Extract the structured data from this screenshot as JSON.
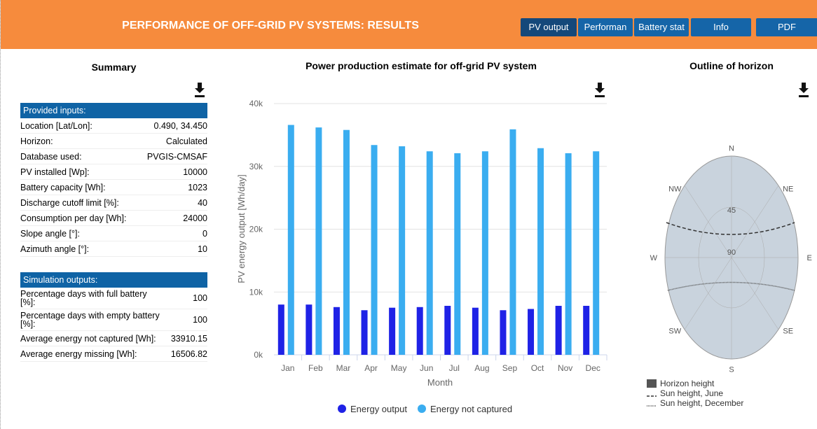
{
  "header": {
    "title": "PERFORMANCE OF OFF-GRID PV SYSTEMS: RESULTS",
    "buttons": [
      "PV output",
      "Performan",
      "Battery stat",
      "Info",
      "PDF"
    ]
  },
  "summary": {
    "title": "Summary",
    "inputs_title": "Provided inputs:",
    "inputs": [
      [
        "Location [Lat/Lon]:",
        "0.490, 34.450"
      ],
      [
        "Horizon:",
        "Calculated"
      ],
      [
        "Database used:",
        "PVGIS-CMSAF"
      ],
      [
        "PV installed [Wp]:",
        "10000"
      ],
      [
        "Battery capacity [Wh]:",
        "1023"
      ],
      [
        "Discharge cutoff limit [%]:",
        "40"
      ],
      [
        "Consumption per day [Wh]:",
        "24000"
      ],
      [
        "Slope angle [°]:",
        "0"
      ],
      [
        "Azimuth angle [°]:",
        "10"
      ]
    ],
    "outputs_title": "Simulation outputs:",
    "outputs": [
      [
        "Percentage days with full battery [%]:",
        "100"
      ],
      [
        "Percentage days with empty battery [%]:",
        "100"
      ],
      [
        "Average energy not captured [Wh]:",
        "33910.15"
      ],
      [
        "Average energy missing [Wh]:",
        "16506.82"
      ]
    ]
  },
  "chart_data": {
    "type": "bar",
    "title": "Power production estimate for off-grid PV system",
    "xlabel": "Month",
    "ylabel": "PV energy output [Wh/day]",
    "categories": [
      "Jan",
      "Feb",
      "Mar",
      "Apr",
      "May",
      "Jun",
      "Jul",
      "Aug",
      "Sep",
      "Oct",
      "Nov",
      "Dec"
    ],
    "series": [
      {
        "name": "Energy output",
        "color": "#1f22e6",
        "values": [
          8000,
          8000,
          7600,
          7100,
          7500,
          7600,
          7800,
          7500,
          7100,
          7300,
          7800,
          7800
        ]
      },
      {
        "name": "Energy not captured",
        "color": "#3aadf0",
        "values": [
          36600,
          36200,
          35800,
          33400,
          33200,
          32400,
          32100,
          32400,
          35900,
          32900,
          32100,
          32400
        ]
      }
    ],
    "ylim": [
      0,
      40000
    ],
    "yticks": [
      {
        "value": 0,
        "label": "0k"
      },
      {
        "value": 10000,
        "label": "10k"
      },
      {
        "value": 20000,
        "label": "20k"
      },
      {
        "value": 30000,
        "label": "30k"
      },
      {
        "value": 40000,
        "label": "40k"
      }
    ],
    "grid": true
  },
  "horizon": {
    "title": "Outline of horizon",
    "directions": [
      "N",
      "NE",
      "E",
      "SE",
      "S",
      "SW",
      "W",
      "NW"
    ],
    "rings": [
      "45",
      "90"
    ],
    "legend": [
      "Horizon height",
      "Sun height, June",
      "Sun height, December"
    ]
  }
}
